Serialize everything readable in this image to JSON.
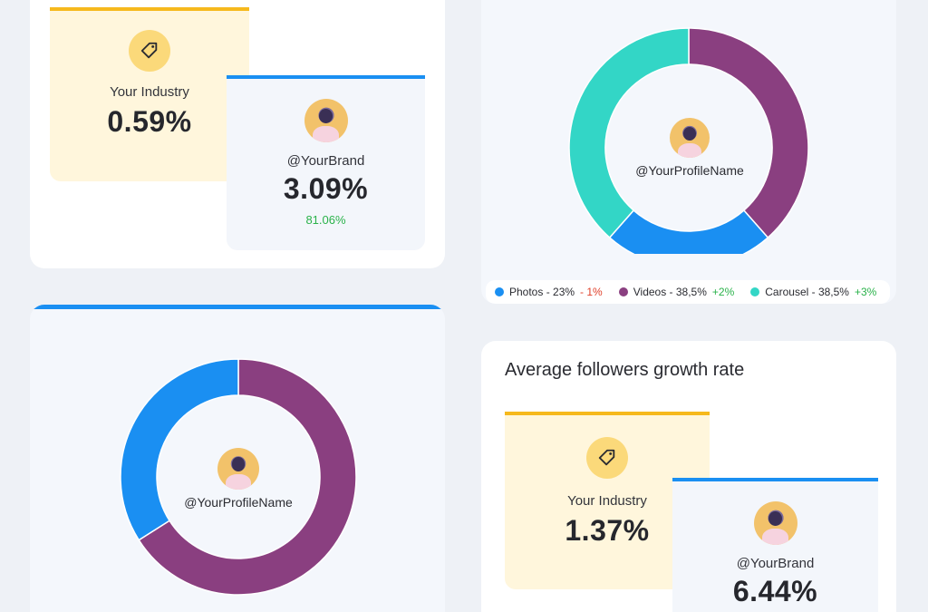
{
  "engagement_card": {
    "industry": {
      "label": "Your Industry",
      "value": "0.59%"
    },
    "brand": {
      "label": "@YourBrand",
      "value": "3.09%",
      "delta": "81.06%"
    }
  },
  "format_chart": {
    "center_label": "@YourProfileName",
    "legend": [
      {
        "name": "Photos - 23%",
        "delta": "- 1%",
        "color": "#1a8ff2",
        "delta_color": "#e0402a"
      },
      {
        "name": "Videos - 38,5%",
        "delta": "+2%",
        "color": "#8a3f80",
        "delta_color": "#2ab24a"
      },
      {
        "name": "Carousel - 38,5%",
        "delta": "+3%",
        "color": "#33d6c6",
        "delta_color": "#2ab24a"
      }
    ],
    "slices": [
      {
        "name": "Photos",
        "value": 23,
        "color": "#1a8ff2"
      },
      {
        "name": "Videos",
        "value": 38.5,
        "color": "#8a3f80"
      },
      {
        "name": "Carousel",
        "value": 38.5,
        "color": "#33d6c6"
      }
    ]
  },
  "audience_chart": {
    "center_label": "@YourProfileName",
    "slices": [
      {
        "value": 66,
        "color": "#8a3f80"
      },
      {
        "value": 34,
        "color": "#1a8ff2"
      }
    ]
  },
  "growth_card": {
    "title": "Average followers growth rate",
    "industry": {
      "label": "Your Industry",
      "value": "1.37%"
    },
    "brand": {
      "label": "@YourBrand",
      "value": "6.44%"
    }
  },
  "icons": {
    "industry_badge": "tag-icon",
    "avatar": "profile-avatar-icon"
  }
}
